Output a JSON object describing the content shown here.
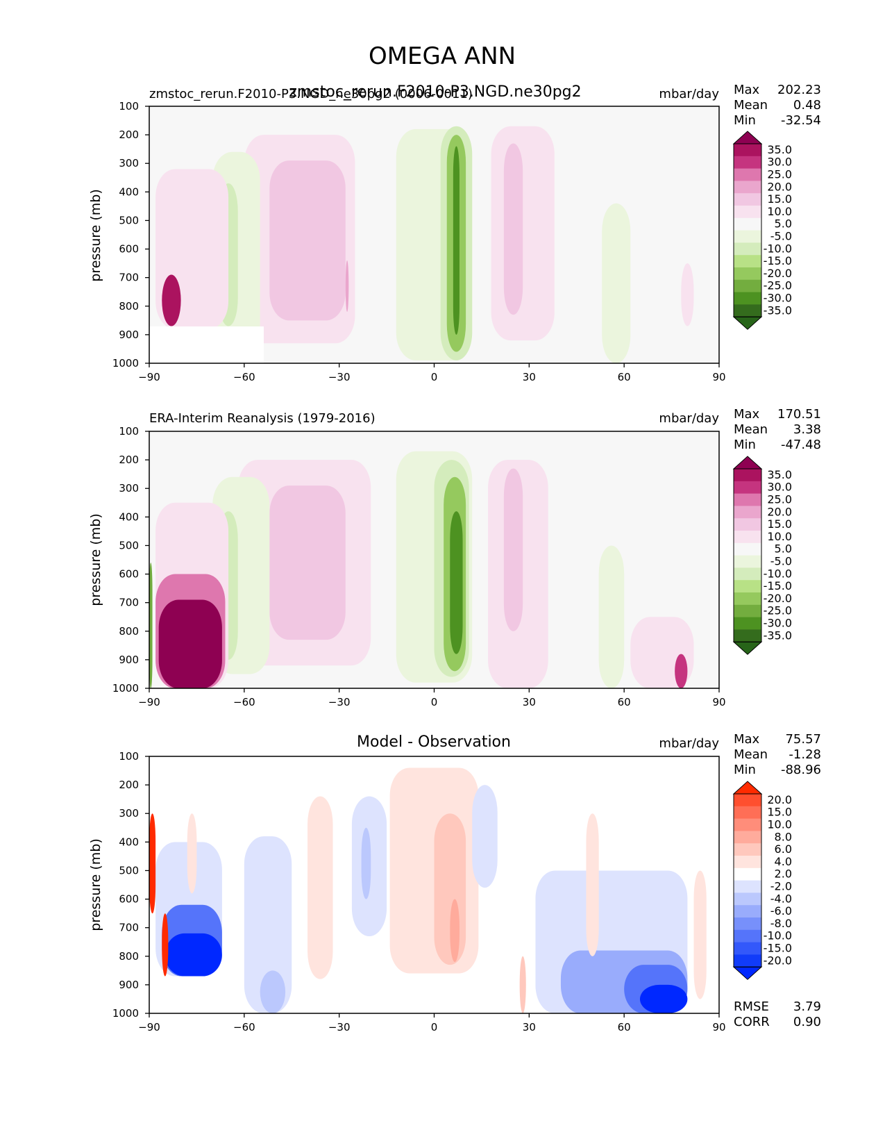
{
  "figure": {
    "title": "OMEGA ANN",
    "x_ticks": [
      "−90",
      "−60",
      "−30",
      "0",
      "30",
      "60",
      "90"
    ],
    "y_ticks": [
      "100",
      "200",
      "300",
      "400",
      "500",
      "600",
      "700",
      "800",
      "900",
      "1000"
    ],
    "ylabel": "pressure (mb)"
  },
  "chart_data": [
    {
      "type": "heatmap",
      "panel": "test",
      "title": "zmstoc_rerun.F2010-P3.NGD.ne30pg2",
      "left_label": "zmstoc_rerun.F2010-P3.NGD_ne30pg2 (0006-0011)",
      "units": "mbar/day",
      "ylabel": "pressure (mb)",
      "xlim": [
        -90,
        90
      ],
      "ylim": [
        1000,
        100
      ],
      "stats": {
        "max_label": "Max",
        "max": "202.23",
        "mean_label": "Mean",
        "mean": "0.48",
        "min_label": "Min",
        "min": "-32.54"
      },
      "colorbar": {
        "levels": [
          "35.0",
          "30.0",
          "25.0",
          "20.0",
          "15.0",
          "10.0",
          "5.0",
          "-5.0",
          "-10.0",
          "-15.0",
          "-20.0",
          "-25.0",
          "-30.0",
          "-35.0"
        ],
        "colors": [
          "#8e0152",
          "#ab135f",
          "#c5347f",
          "#de77ae",
          "#eaa6cd",
          "#f1c7e2",
          "#f8e2ef",
          "#f7f7f7",
          "#ebf5dd",
          "#d4ecbc",
          "#b8e186",
          "#95c95e",
          "#73ad3f",
          "#4d9221",
          "#346c1d",
          "#276419"
        ]
      },
      "features": [
        {
          "cmin": -60,
          "cmax": -25,
          "pmin": 200,
          "pmax": 930,
          "value": 8
        },
        {
          "cmin": -52,
          "cmax": -28,
          "pmin": 290,
          "pmax": 850,
          "value": 13
        },
        {
          "cmin": -28,
          "cmax": -27,
          "pmin": 640,
          "pmax": 820,
          "value": 18
        },
        {
          "cmin": 18,
          "cmax": 38,
          "pmin": 170,
          "pmax": 920,
          "value": 8
        },
        {
          "cmin": 22,
          "cmax": 28,
          "pmin": 230,
          "pmax": 830,
          "value": 12
        },
        {
          "cmin": -12,
          "cmax": 12,
          "pmin": 180,
          "pmax": 990,
          "value": -8
        },
        {
          "cmin": 2,
          "cmax": 12,
          "pmin": 170,
          "pmax": 990,
          "value": -14
        },
        {
          "cmin": 4,
          "cmax": 10,
          "pmin": 200,
          "pmax": 960,
          "value": -22
        },
        {
          "cmin": 6,
          "cmax": 8,
          "pmin": 240,
          "pmax": 900,
          "value": -34
        },
        {
          "cmin": -70,
          "cmax": -55,
          "pmin": 260,
          "pmax": 980,
          "value": -8
        },
        {
          "cmin": -68,
          "cmax": -62,
          "pmin": 370,
          "pmax": 870,
          "value": -15
        },
        {
          "cmin": -88,
          "cmax": -65,
          "pmin": 320,
          "pmax": 880,
          "value": 7
        },
        {
          "cmin": -86,
          "cmax": -80,
          "pmin": 690,
          "pmax": 870,
          "value": 32
        },
        {
          "cmin": 53,
          "cmax": 62,
          "pmin": 440,
          "pmax": 1000,
          "value": -7
        },
        {
          "cmin": 78,
          "cmax": 82,
          "pmin": 650,
          "pmax": 870,
          "value": 7
        }
      ]
    },
    {
      "type": "heatmap",
      "panel": "reference",
      "left_label": "ERA-Interim Reanalysis (1979-2016)",
      "units": "mbar/day",
      "ylabel": "pressure (mb)",
      "xlim": [
        -90,
        90
      ],
      "ylim": [
        1000,
        100
      ],
      "stats": {
        "max_label": "Max",
        "max": "170.51",
        "mean_label": "Mean",
        "mean": "3.38",
        "min_label": "Min",
        "min": "-47.48"
      },
      "colorbar": {
        "levels": [
          "35.0",
          "30.0",
          "25.0",
          "20.0",
          "15.0",
          "10.0",
          "5.0",
          "-5.0",
          "-10.0",
          "-15.0",
          "-20.0",
          "-25.0",
          "-30.0",
          "-35.0"
        ],
        "colors": [
          "#8e0152",
          "#ab135f",
          "#c5347f",
          "#de77ae",
          "#eaa6cd",
          "#f1c7e2",
          "#f8e2ef",
          "#f7f7f7",
          "#ebf5dd",
          "#d4ecbc",
          "#b8e186",
          "#95c95e",
          "#73ad3f",
          "#4d9221",
          "#346c1d",
          "#276419"
        ]
      },
      "features": [
        {
          "cmin": -62,
          "cmax": -20,
          "pmin": 200,
          "pmax": 920,
          "value": 7
        },
        {
          "cmin": -52,
          "cmax": -28,
          "pmin": 290,
          "pmax": 830,
          "value": 12
        },
        {
          "cmin": 17,
          "cmax": 36,
          "pmin": 200,
          "pmax": 1000,
          "value": 8
        },
        {
          "cmin": 22,
          "cmax": 28,
          "pmin": 230,
          "pmax": 800,
          "value": 12
        },
        {
          "cmin": -12,
          "cmax": 12,
          "pmin": 170,
          "pmax": 980,
          "value": -8
        },
        {
          "cmin": 0,
          "cmax": 11,
          "pmin": 200,
          "pmax": 960,
          "value": -14
        },
        {
          "cmin": 3,
          "cmax": 10,
          "pmin": 260,
          "pmax": 940,
          "value": -24
        },
        {
          "cmin": 5,
          "cmax": 9,
          "pmin": 380,
          "pmax": 880,
          "value": -34
        },
        {
          "cmin": -70,
          "cmax": -52,
          "pmin": 260,
          "pmax": 950,
          "value": -8
        },
        {
          "cmin": -68,
          "cmax": -62,
          "pmin": 380,
          "pmax": 900,
          "value": -15
        },
        {
          "cmin": -88,
          "cmax": -65,
          "pmin": 350,
          "pmax": 1000,
          "value": 8
        },
        {
          "cmin": -88,
          "cmax": -66,
          "pmin": 600,
          "pmax": 1000,
          "value": 22
        },
        {
          "cmin": -87,
          "cmax": -67,
          "pmin": 690,
          "pmax": 1000,
          "value": 38
        },
        {
          "cmin": -90,
          "cmax": -89,
          "pmin": 560,
          "pmax": 1000,
          "value": -30
        },
        {
          "cmin": 52,
          "cmax": 60,
          "pmin": 500,
          "pmax": 1000,
          "value": -8
        },
        {
          "cmin": 62,
          "cmax": 82,
          "pmin": 750,
          "pmax": 1000,
          "value": 8
        },
        {
          "cmin": 76,
          "cmax": 80,
          "pmin": 880,
          "pmax": 1000,
          "value": 25
        }
      ]
    },
    {
      "type": "heatmap",
      "panel": "difference",
      "title": "Model - Observation",
      "units": "mbar/day",
      "ylabel": "pressure (mb)",
      "xlim": [
        -90,
        90
      ],
      "ylim": [
        1000,
        100
      ],
      "stats": {
        "max_label": "Max",
        "max": "75.57",
        "mean_label": "Mean",
        "mean": "-1.28",
        "min_label": "Min",
        "min": "-88.96"
      },
      "extra": {
        "rmse_label": "RMSE",
        "rmse": "3.79",
        "corr_label": "CORR",
        "corr": "0.90"
      },
      "colorbar": {
        "levels": [
          "20.0",
          "15.0",
          "10.0",
          "8.0",
          "6.0",
          "4.0",
          "2.0",
          "-2.0",
          "-4.0",
          "-6.0",
          "-8.0",
          "-10.0",
          "-15.0",
          "-20.0"
        ],
        "colors": [
          "#ff2b00",
          "#ff4f2f",
          "#ff6e56",
          "#ff8d7a",
          "#ffab9c",
          "#ffc8bd",
          "#ffe4de",
          "#ffffff",
          "#dde3fe",
          "#bbc8fd",
          "#99acfc",
          "#7790fb",
          "#5574fa",
          "#3358fa",
          "#113cf9",
          "#0028ff"
        ]
      },
      "features": [
        {
          "cmin": -40,
          "cmax": -32,
          "pmin": 240,
          "pmax": 880,
          "value": 3
        },
        {
          "cmin": -26,
          "cmax": -15,
          "pmin": 240,
          "pmax": 730,
          "value": -3
        },
        {
          "cmin": -23,
          "cmax": -20,
          "pmin": 350,
          "pmax": 600,
          "value": -5
        },
        {
          "cmin": -14,
          "cmax": 14,
          "pmin": 140,
          "pmax": 860,
          "value": 3
        },
        {
          "cmin": 0,
          "cmax": 10,
          "pmin": 300,
          "pmax": 830,
          "value": 5
        },
        {
          "cmin": 5,
          "cmax": 8,
          "pmin": 600,
          "pmax": 820,
          "value": 7
        },
        {
          "cmin": 12,
          "cmax": 20,
          "pmin": 200,
          "pmax": 560,
          "value": -3
        },
        {
          "cmin": -60,
          "cmax": -45,
          "pmin": 380,
          "pmax": 1000,
          "value": -3
        },
        {
          "cmin": -55,
          "cmax": -47,
          "pmin": 850,
          "pmax": 1000,
          "value": -6
        },
        {
          "cmin": -88,
          "cmax": -67,
          "pmin": 400,
          "pmax": 870,
          "value": -4
        },
        {
          "cmin": -86,
          "cmax": -67,
          "pmin": 620,
          "pmax": 870,
          "value": -12
        },
        {
          "cmin": -85,
          "cmax": -67,
          "pmin": 720,
          "pmax": 870,
          "value": -25
        },
        {
          "cmin": -90,
          "cmax": -88,
          "pmin": 300,
          "pmax": 650,
          "value": 25
        },
        {
          "cmin": -86,
          "cmax": -84,
          "pmin": 650,
          "pmax": 870,
          "value": 25
        },
        {
          "cmin": -78,
          "cmax": -75,
          "pmin": 300,
          "pmax": 580,
          "value": 3
        },
        {
          "cmin": 32,
          "cmax": 80,
          "pmin": 500,
          "pmax": 1000,
          "value": -3
        },
        {
          "cmin": 40,
          "cmax": 80,
          "pmin": 780,
          "pmax": 1000,
          "value": -8
        },
        {
          "cmin": 60,
          "cmax": 80,
          "pmin": 830,
          "pmax": 1000,
          "value": -12
        },
        {
          "cmin": 65,
          "cmax": 80,
          "pmin": 900,
          "pmax": 1000,
          "value": -22
        },
        {
          "cmin": 82,
          "cmax": 86,
          "pmin": 500,
          "pmax": 950,
          "value": 3
        },
        {
          "cmin": 27,
          "cmax": 29,
          "pmin": 800,
          "pmax": 1000,
          "value": 4
        },
        {
          "cmin": 48,
          "cmax": 52,
          "pmin": 300,
          "pmax": 800,
          "value": 3
        }
      ]
    }
  ]
}
